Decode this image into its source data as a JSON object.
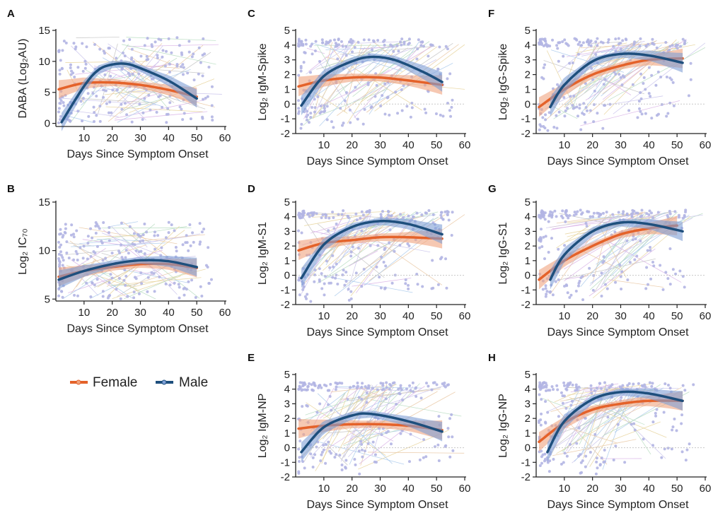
{
  "legend": {
    "female_label": "Female",
    "male_label": "Male",
    "female_color": "#e4622a",
    "male_color": "#1e4f7d"
  },
  "colors": {
    "female_band": "#f0a47f",
    "male_band": "#7e9fd6",
    "points": "#b3b5e3",
    "zero_line": "#c8c8c8"
  },
  "chart_data": [
    {
      "panel": "A",
      "type": "line",
      "ylabel": "DABA (Log₂AU)",
      "xlabel": "Days Since Symptom Onset",
      "xlim": [
        0,
        60
      ],
      "ylim": [
        -0.5,
        15
      ],
      "xticks": [
        10,
        20,
        30,
        40,
        50,
        60
      ],
      "yticks": [
        0,
        5,
        10,
        15
      ],
      "zero_line": false,
      "series": [
        {
          "name": "Female",
          "x": [
            1,
            10,
            20,
            30,
            40,
            50
          ],
          "y": [
            5.5,
            6.5,
            6.6,
            6.2,
            5.4,
            4.3
          ]
        },
        {
          "name": "Male",
          "x": [
            2,
            10,
            15,
            20,
            25,
            30,
            40,
            50
          ],
          "y": [
            0.2,
            6,
            8.6,
            9.5,
            9.6,
            8.9,
            6.9,
            4.0
          ]
        }
      ]
    },
    {
      "panel": "B",
      "type": "line",
      "ylabel": "Log₂ IC₇₀",
      "xlabel": "Days Since Symptom Onset",
      "xlim": [
        0,
        60
      ],
      "ylim": [
        4.8,
        15
      ],
      "xticks": [
        10,
        20,
        30,
        40,
        50,
        60
      ],
      "yticks": [
        5,
        10,
        15
      ],
      "zero_line": false,
      "series": [
        {
          "name": "Female",
          "x": [
            1,
            10,
            20,
            30,
            40,
            50
          ],
          "y": [
            7.3,
            7.9,
            8.3,
            8.6,
            8.6,
            8.2
          ]
        },
        {
          "name": "Male",
          "x": [
            1,
            10,
            20,
            30,
            40,
            50
          ],
          "y": [
            7.0,
            7.9,
            8.6,
            9.0,
            8.9,
            8.3
          ]
        }
      ]
    },
    {
      "panel": "C",
      "type": "line",
      "ylabel": "Log₂ IgM-Spike",
      "xlabel": "Days Since Symptom Onset",
      "xlim": [
        0,
        60
      ],
      "ylim": [
        -2,
        5
      ],
      "xticks": [
        10,
        20,
        30,
        40,
        50,
        60
      ],
      "yticks": [
        -2,
        -1,
        0,
        1,
        2,
        3,
        4,
        5
      ],
      "zero_line": true,
      "series": [
        {
          "name": "Female",
          "x": [
            1,
            10,
            20,
            30,
            40,
            52
          ],
          "y": [
            1.2,
            1.6,
            1.8,
            1.8,
            1.6,
            1.3
          ]
        },
        {
          "name": "Male",
          "x": [
            2,
            10,
            20,
            27,
            35,
            45,
            52
          ],
          "y": [
            -0.1,
            1.9,
            2.9,
            3.2,
            3.0,
            2.2,
            1.5
          ]
        }
      ]
    },
    {
      "panel": "D",
      "type": "line",
      "ylabel": "Log₂ IgM-S1",
      "xlabel": "Days Since Symptom Onset",
      "xlim": [
        0,
        60
      ],
      "ylim": [
        -2,
        5
      ],
      "xticks": [
        10,
        20,
        30,
        40,
        50,
        60
      ],
      "yticks": [
        -2,
        -1,
        0,
        1,
        2,
        3,
        4,
        5
      ],
      "zero_line": true,
      "series": [
        {
          "name": "Female",
          "x": [
            1,
            10,
            20,
            30,
            40,
            52
          ],
          "y": [
            1.7,
            2.2,
            2.4,
            2.6,
            2.6,
            2.5
          ]
        },
        {
          "name": "Male",
          "x": [
            2,
            10,
            20,
            30,
            40,
            52
          ],
          "y": [
            -0.2,
            2.1,
            3.3,
            3.7,
            3.5,
            2.8
          ]
        }
      ]
    },
    {
      "panel": "E",
      "type": "line",
      "ylabel": "Log₂ IgM-NP",
      "xlabel": "Days Since Symptom Onset",
      "xlim": [
        0,
        60
      ],
      "ylim": [
        -2,
        5
      ],
      "xticks": [
        10,
        20,
        30,
        40,
        50,
        60
      ],
      "yticks": [
        -2,
        -1,
        0,
        1,
        2,
        3,
        4,
        5
      ],
      "zero_line": true,
      "series": [
        {
          "name": "Female",
          "x": [
            1,
            10,
            20,
            30,
            40,
            52
          ],
          "y": [
            1.3,
            1.5,
            1.6,
            1.6,
            1.5,
            1.2
          ]
        },
        {
          "name": "Male",
          "x": [
            2,
            10,
            20,
            27,
            40,
            52
          ],
          "y": [
            -0.3,
            1.4,
            2.2,
            2.3,
            1.8,
            1.1
          ]
        }
      ]
    },
    {
      "panel": "F",
      "type": "line",
      "ylabel": "Log₂ IgG-Spike",
      "xlabel": "Days Since Symptom Onset",
      "xlim": [
        0,
        60
      ],
      "ylim": [
        -2,
        5
      ],
      "xticks": [
        10,
        20,
        30,
        40,
        50,
        60
      ],
      "yticks": [
        -2,
        -1,
        0,
        1,
        2,
        3,
        4,
        5
      ],
      "zero_line": true,
      "series": [
        {
          "name": "Female",
          "x": [
            1,
            10,
            20,
            30,
            40,
            52
          ],
          "y": [
            -0.2,
            1.0,
            2.0,
            2.6,
            3.0,
            3.1
          ]
        },
        {
          "name": "Male",
          "x": [
            5,
            10,
            20,
            30,
            40,
            52
          ],
          "y": [
            -0.2,
            1.3,
            2.9,
            3.4,
            3.3,
            2.8
          ]
        }
      ]
    },
    {
      "panel": "G",
      "type": "line",
      "ylabel": "Log₂ IgG-S1",
      "xlabel": "Days Since Symptom Onset",
      "xlim": [
        0,
        60
      ],
      "ylim": [
        -2,
        5
      ],
      "xticks": [
        10,
        20,
        30,
        40,
        50,
        60
      ],
      "yticks": [
        -2,
        -1,
        0,
        1,
        2,
        3,
        4,
        5
      ],
      "zero_line": true,
      "series": [
        {
          "name": "Female",
          "x": [
            1,
            10,
            20,
            30,
            40,
            50
          ],
          "y": [
            -0.3,
            1.0,
            2.0,
            2.8,
            3.2,
            3.4
          ]
        },
        {
          "name": "Male",
          "x": [
            5,
            10,
            20,
            30,
            40,
            52
          ],
          "y": [
            -0.3,
            1.4,
            3.0,
            3.6,
            3.5,
            3.0
          ]
        }
      ]
    },
    {
      "panel": "H",
      "type": "line",
      "ylabel": "Log₂ IgG-NP",
      "xlabel": "Days Since Symptom Onset",
      "xlim": [
        0,
        60
      ],
      "ylim": [
        -2,
        5
      ],
      "xticks": [
        10,
        20,
        30,
        40,
        50,
        60
      ],
      "yticks": [
        -2,
        -1,
        0,
        1,
        2,
        3,
        4,
        5
      ],
      "zero_line": true,
      "series": [
        {
          "name": "Female",
          "x": [
            1,
            10,
            20,
            30,
            40,
            52
          ],
          "y": [
            0.4,
            1.7,
            2.6,
            3.0,
            3.2,
            3.2
          ]
        },
        {
          "name": "Male",
          "x": [
            4,
            10,
            20,
            30,
            40,
            52
          ],
          "y": [
            -0.3,
            1.8,
            3.3,
            3.8,
            3.7,
            3.2
          ]
        }
      ]
    }
  ]
}
